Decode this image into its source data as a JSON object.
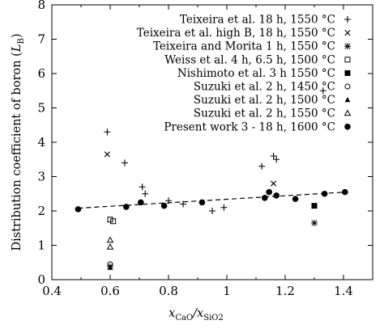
{
  "chart_data": {
    "type": "scatter",
    "xlabel": "x_CaO / x_SiO2",
    "ylabel": "Distribution coefficient of boron (L_B)",
    "xlim": [
      0.4,
      1.5
    ],
    "ylim": [
      0,
      8
    ],
    "xticks": [
      "0.4",
      "0.6",
      "0.8",
      "1",
      "1.2",
      "1.4"
    ],
    "yticks": [
      "0",
      "1",
      "2",
      "3",
      "4",
      "5",
      "6",
      "7",
      "8"
    ],
    "grid": false,
    "legend_position": "top-right",
    "series": [
      {
        "name": "Teixeira et al. 18 h, 1550 °C",
        "marker": "plus",
        "points": [
          [
            0.59,
            4.3
          ],
          [
            0.65,
            3.4
          ],
          [
            0.71,
            2.7
          ],
          [
            0.72,
            2.5
          ],
          [
            0.8,
            2.3
          ],
          [
            0.85,
            2.2
          ],
          [
            0.95,
            2.0
          ],
          [
            0.99,
            2.1
          ],
          [
            1.12,
            3.3
          ],
          [
            1.16,
            3.6
          ],
          [
            1.17,
            3.5
          ],
          [
            1.33,
            5.5
          ]
        ]
      },
      {
        "name": "Teixeira et al. high B, 18 h, 1550 °C",
        "marker": "cross",
        "points": [
          [
            0.59,
            3.65
          ],
          [
            1.16,
            2.8
          ]
        ]
      },
      {
        "name": "Teixeira and Morita 1 h, 1550 °C",
        "marker": "star",
        "points": [
          [
            0.6,
            0.38
          ],
          [
            1.3,
            1.65
          ]
        ]
      },
      {
        "name": "Weiss et al. 4 h, 6.5 h, 1500 °C",
        "marker": "open-square",
        "points": [
          [
            0.6,
            1.75
          ],
          [
            0.61,
            1.7
          ]
        ]
      },
      {
        "name": "Nishimoto et al. 3 h 1550 °C",
        "marker": "filled-square",
        "points": [
          [
            1.3,
            2.15
          ]
        ]
      },
      {
        "name": "Suzuki et al. 2 h, 1450 °C",
        "marker": "open-circle",
        "points": [
          [
            0.6,
            0.45
          ]
        ]
      },
      {
        "name": "Suzuki et al. 2 h, 1500 °C",
        "marker": "filled-triangle",
        "points": [
          [
            0.6,
            0.35
          ]
        ]
      },
      {
        "name": "Suzuki et al. 2 h, 1550 °C",
        "marker": "open-triangle",
        "points": [
          [
            0.6,
            1.15
          ],
          [
            0.6,
            0.95
          ]
        ]
      },
      {
        "name": "Present work 3 - 18 h, 1600 °C",
        "marker": "filled-circle",
        "points": [
          [
            0.49,
            2.05
          ],
          [
            0.655,
            2.12
          ],
          [
            0.705,
            2.25
          ],
          [
            0.785,
            2.15
          ],
          [
            0.915,
            2.25
          ],
          [
            1.13,
            2.38
          ],
          [
            1.145,
            2.55
          ],
          [
            1.17,
            2.45
          ],
          [
            1.235,
            2.35
          ],
          [
            1.335,
            2.5
          ],
          [
            1.405,
            2.55
          ]
        ]
      }
    ],
    "trendline": {
      "style": "dashed",
      "x": [
        0.49,
        1.41
      ],
      "y": [
        2.08,
        2.55
      ]
    }
  }
}
